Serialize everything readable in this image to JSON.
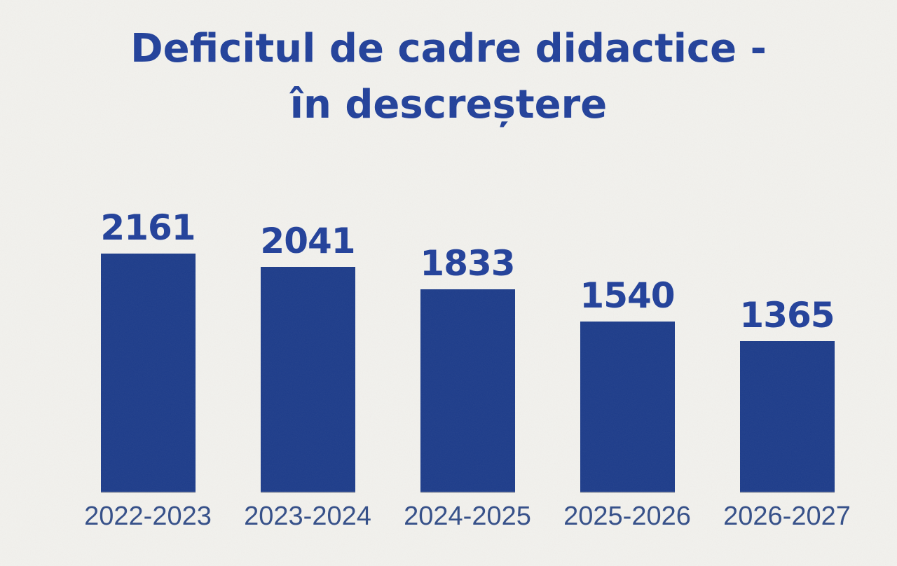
{
  "title": {
    "line1": "Deficitul de cadre didactice -",
    "line2": "în descreștere"
  },
  "chart_data": {
    "type": "bar",
    "title": "Deficitul de cadre didactice - în descreștere",
    "categories": [
      "2022-2023",
      "2023-2024",
      "2024-2025",
      "2025-2026",
      "2026-2027"
    ],
    "values": [
      2161,
      2041,
      1833,
      1540,
      1365
    ],
    "xlabel": "",
    "ylabel": "",
    "ylim": [
      0,
      2300
    ],
    "grid": false,
    "legend": false,
    "data_labels": true,
    "orientation": "vertical"
  },
  "theme": {
    "background": "#f2f1ed",
    "bar_color": "#1d3c8a",
    "title_color": "#21409a",
    "value_label_color": "#21409a",
    "category_label_color": "#334e88"
  }
}
